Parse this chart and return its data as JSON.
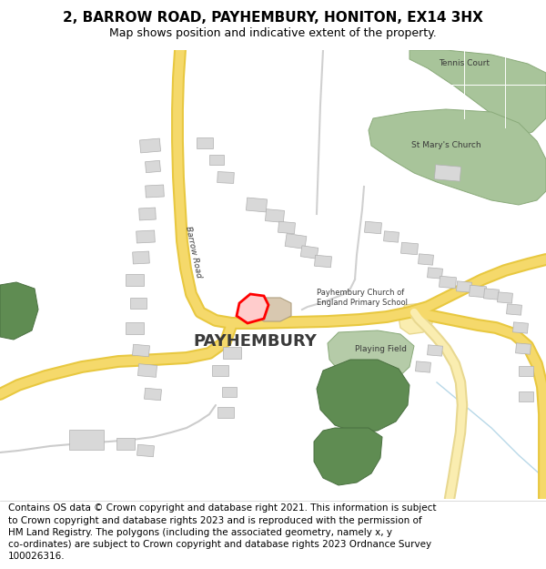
{
  "title": "2, BARROW ROAD, PAYHEMBURY, HONITON, EX14 3HX",
  "subtitle": "Map shows position and indicative extent of the property.",
  "footer": "Contains OS data © Crown copyright and database right 2021. This information is subject\nto Crown copyright and database rights 2023 and is reproduced with the permission of\nHM Land Registry. The polygons (including the associated geometry, namely x, y\nco-ordinates) are subject to Crown copyright and database rights 2023 Ordnance Survey\n100026316.",
  "map_bg": "#ffffff",
  "road_fill": "#f5d96b",
  "road_outline": "#e8c840",
  "road_fill_light": "#faedb0",
  "road_outline_light": "#e8d890",
  "minor_road_color": "#d0d0d0",
  "path_color": "#cccccc",
  "green_dark": "#5f8c52",
  "green_light": "#b5cba8",
  "church_green": "#a8c49a",
  "building_fill": "#d8d8d8",
  "building_edge": "#b0b0b0",
  "red_poly_fill": "#ffcccc",
  "red_poly_edge": "#ff0000",
  "text_dark": "#3a3a3a",
  "title_fontsize": 11,
  "subtitle_fontsize": 9,
  "footer_fontsize": 7.5,
  "label_payhembury_size": 13,
  "label_small_size": 6.5,
  "label_road_size": 6.5,
  "label_school_size": 6.0
}
